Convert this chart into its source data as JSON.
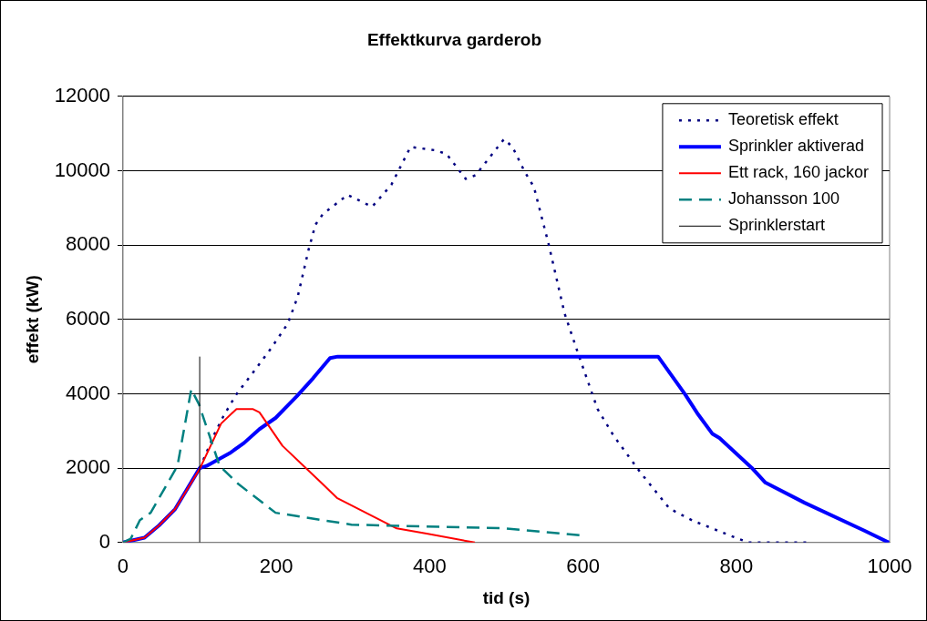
{
  "chart_data": {
    "type": "line",
    "title": "Effektkurva garderob",
    "xlabel": "tid (s)",
    "ylabel": "effekt (kW)",
    "xlim": [
      0,
      1000
    ],
    "xticks": [
      0,
      200,
      400,
      600,
      800,
      1000
    ],
    "ylim": [
      0,
      12000
    ],
    "yticks": [
      0,
      2000,
      4000,
      6000,
      8000,
      10000,
      12000
    ],
    "grid": "y",
    "legend": "top right",
    "marker": "none",
    "series": [
      {
        "name": "Teoretisk effekt",
        "color": "#000080",
        "line_style": "dotted",
        "x": [
          100,
          120,
          131,
          148,
          171,
          193,
          215,
          228,
          242,
          251,
          261,
          293,
          325,
          350,
          375,
          407,
          422,
          447,
          460,
          497,
          508,
          524,
          536,
          555,
          576,
          594,
          619,
          640,
          675,
          713,
          743,
          799,
          816,
          893
        ],
        "values": [
          2000,
          2950,
          3400,
          3990,
          4610,
          5220,
          5890,
          6620,
          7870,
          8550,
          8840,
          9350,
          9030,
          9620,
          10640,
          10550,
          10450,
          9780,
          9880,
          10850,
          10640,
          9970,
          9560,
          8040,
          6160,
          5060,
          3590,
          2870,
          1880,
          910,
          590,
          130,
          0,
          0
        ]
      },
      {
        "name": "Sprinkler aktiverad",
        "color": "#0000ff",
        "line_style": "solid",
        "x": [
          0,
          28,
          47,
          68,
          100,
          109,
          139,
          158,
          178,
          199,
          227,
          248,
          270,
          280,
          698,
          733,
          749,
          769,
          778,
          820,
          838,
          889,
          967,
          999
        ],
        "values": [
          0,
          130,
          460,
          900,
          2000,
          2060,
          2400,
          2680,
          3050,
          3350,
          3940,
          4420,
          4960,
          5000,
          5000,
          3990,
          3480,
          2920,
          2810,
          2010,
          1610,
          1070,
          320,
          0
        ]
      },
      {
        "name": "Ett rack, 160 jackor",
        "color": "#ff0000",
        "line_style": "solid",
        "x": [
          0,
          28,
          47,
          68,
          100,
          128,
          148,
          169,
          178,
          208,
          260,
          279,
          357,
          396,
          459
        ],
        "values": [
          0,
          130,
          460,
          900,
          1980,
          3200,
          3590,
          3590,
          3500,
          2600,
          1580,
          1200,
          380,
          240,
          0
        ]
      },
      {
        "name": "Johansson 100",
        "color": "#008080",
        "line_style": "dashed",
        "x": [
          0,
          10,
          22,
          36,
          71,
          89,
          99,
          126,
          150,
          199,
          298,
          499,
          600
        ],
        "values": [
          0,
          100,
          600,
          800,
          2060,
          4120,
          3720,
          2060,
          1580,
          800,
          480,
          380,
          190
        ]
      },
      {
        "name": "Sprinklerstart",
        "color": "#000000",
        "line_style": "solid",
        "x": [
          100,
          100
        ],
        "values": [
          0,
          5000
        ]
      }
    ]
  }
}
